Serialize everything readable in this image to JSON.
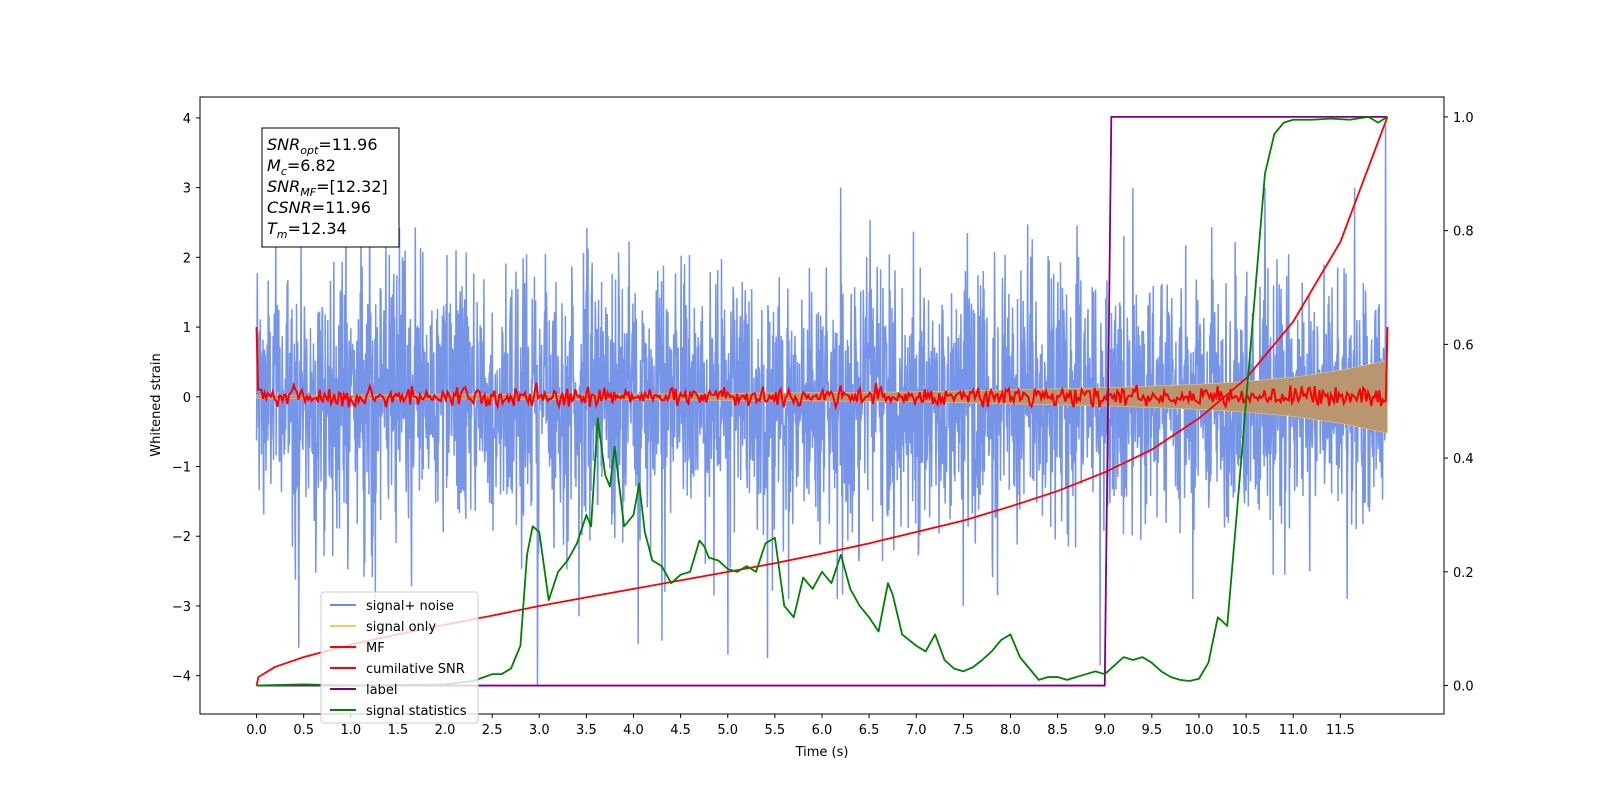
{
  "chart_data": {
    "type": "line",
    "xlabel": "Time (s)",
    "ylabel": "Whitened strain",
    "xlim": [
      -0.6,
      12.6
    ],
    "ylim": [
      -4.55,
      4.3
    ],
    "ylim_right": [
      -0.05,
      1.035
    ],
    "xticks": [
      0.0,
      0.5,
      1.0,
      1.5,
      2.0,
      2.5,
      3.0,
      3.5,
      4.0,
      4.5,
      5.0,
      5.5,
      6.0,
      6.5,
      7.0,
      7.5,
      8.0,
      8.5,
      9.0,
      9.5,
      10.0,
      10.5,
      11.0,
      11.5
    ],
    "xtick_labels": [
      "0.0",
      "0.5",
      "1.0",
      "1.5",
      "2.0",
      "2.5",
      "3.0",
      "3.5",
      "4.0",
      "4.5",
      "5.0",
      "5.5",
      "6.0",
      "6.5",
      "7.0",
      "7.5",
      "8.0",
      "8.5",
      "9.0",
      "9.5",
      "10.0",
      "10.5",
      "11.0",
      "11.5"
    ],
    "yticks": [
      4,
      3,
      2,
      1,
      0,
      -1,
      -2,
      -3,
      -4
    ],
    "ytick_labels": [
      "4",
      "3",
      "2",
      "1",
      "0",
      "−1",
      "−2",
      "−3",
      "−4"
    ],
    "yticks_right": [
      1.0,
      0.8,
      0.6,
      0.4,
      0.2,
      0.0
    ],
    "ytick_labels_right": [
      "1.0",
      "0.8",
      "0.6",
      "0.4",
      "0.2",
      "0.0"
    ],
    "annotation": [
      {
        "base": "SNR",
        "sub": "opt",
        "value": "=11.96"
      },
      {
        "base": "M",
        "sub": "c",
        "value": "=6.82"
      },
      {
        "base": "SNR",
        "sub": "MF",
        "value": "=[12.32]"
      },
      {
        "base": "CSNR",
        "sub": "",
        "value": "=11.96"
      },
      {
        "base": "T",
        "sub": "m",
        "value": "=12.34"
      }
    ],
    "legend_position": "lower-left",
    "grid": false,
    "series": [
      {
        "name": "signal+ noise",
        "color": "#6a8ce6",
        "axis": "left",
        "kind": "noise",
        "t_start": 0.0,
        "t_end": 12.0,
        "samples": 3000,
        "std": 0.95,
        "spikes": [
          {
            "x": 0.45,
            "y": -3.6
          },
          {
            "x": 0.95,
            "y": 3.0
          },
          {
            "x": 2.98,
            "y": -4.15
          },
          {
            "x": 3.42,
            "y": -3.15
          },
          {
            "x": 4.05,
            "y": 3.12
          },
          {
            "x": 4.05,
            "y": -3.55
          },
          {
            "x": 4.3,
            "y": -3.5
          },
          {
            "x": 5.0,
            "y": -3.7
          },
          {
            "x": 5.42,
            "y": -3.75
          },
          {
            "x": 6.2,
            "y": 3.0
          },
          {
            "x": 7.5,
            "y": -3.0
          },
          {
            "x": 8.95,
            "y": -3.85
          },
          {
            "x": 9.3,
            "y": 3.0
          },
          {
            "x": 11.65,
            "y": 3.0
          },
          {
            "x": 11.98,
            "y": 3.9
          },
          {
            "x": 1.2,
            "y": 3.0
          },
          {
            "x": 10.7,
            "y": 3.0
          }
        ]
      },
      {
        "name": "signal only",
        "color": "#f5c86a",
        "axis": "left",
        "kind": "envelope",
        "envelope": [
          [
            0.0,
            0.02
          ],
          [
            2.0,
            0.03
          ],
          [
            4.0,
            0.04
          ],
          [
            6.0,
            0.06
          ],
          [
            7.0,
            0.07
          ],
          [
            8.0,
            0.1
          ],
          [
            9.0,
            0.13
          ],
          [
            10.0,
            0.18
          ],
          [
            10.5,
            0.22
          ],
          [
            11.0,
            0.28
          ],
          [
            11.5,
            0.38
          ],
          [
            12.0,
            0.52
          ]
        ]
      },
      {
        "name": "MF",
        "color": "#ff0000",
        "axis": "left",
        "kind": "mf",
        "t_start": 0.0,
        "t_end": 12.0,
        "samples": 700,
        "amplitude": 0.07,
        "endpoints": [
          [
            0.0,
            1.0
          ],
          [
            0.03,
            0.05
          ],
          [
            11.97,
            0.05
          ],
          [
            12.0,
            1.0
          ]
        ]
      },
      {
        "name": "cumilative SNR",
        "color": "#ff0000",
        "axis": "right",
        "x": [
          0.0,
          0.02,
          0.2,
          0.5,
          1.0,
          1.5,
          2.0,
          2.5,
          3.0,
          3.5,
          4.0,
          4.5,
          5.0,
          5.5,
          6.0,
          6.5,
          7.0,
          7.5,
          8.0,
          8.5,
          9.0,
          9.5,
          10.0,
          10.5,
          11.0,
          11.5,
          12.0
        ],
        "y": [
          0.0,
          0.015,
          0.033,
          0.05,
          0.072,
          0.09,
          0.107,
          0.123,
          0.14,
          0.155,
          0.17,
          0.185,
          0.2,
          0.215,
          0.232,
          0.25,
          0.27,
          0.29,
          0.315,
          0.342,
          0.375,
          0.415,
          0.47,
          0.54,
          0.64,
          0.78,
          1.0
        ]
      },
      {
        "name": "label",
        "color": "#800080",
        "axis": "right",
        "x": [
          0.0,
          9.0,
          9.07,
          12.0
        ],
        "y": [
          0.0,
          0.0,
          1.0,
          1.0
        ]
      },
      {
        "name": "signal statistics",
        "color": "#008000",
        "axis": "right",
        "x": [
          0.0,
          0.5,
          1.0,
          1.5,
          2.0,
          2.3,
          2.5,
          2.6,
          2.7,
          2.8,
          2.87,
          2.93,
          3.0,
          3.1,
          3.2,
          3.3,
          3.4,
          3.5,
          3.55,
          3.62,
          3.7,
          3.75,
          3.8,
          3.85,
          3.9,
          4.0,
          4.06,
          4.12,
          4.2,
          4.3,
          4.4,
          4.5,
          4.6,
          4.7,
          4.75,
          4.8,
          4.9,
          5.0,
          5.1,
          5.2,
          5.3,
          5.4,
          5.5,
          5.6,
          5.7,
          5.8,
          5.9,
          6.0,
          6.1,
          6.2,
          6.3,
          6.4,
          6.5,
          6.6,
          6.7,
          6.75,
          6.85,
          7.0,
          7.1,
          7.2,
          7.3,
          7.4,
          7.5,
          7.6,
          7.7,
          7.8,
          7.9,
          8.0,
          8.1,
          8.2,
          8.3,
          8.4,
          8.5,
          8.6,
          8.7,
          8.8,
          8.9,
          9.0,
          9.1,
          9.2,
          9.3,
          9.4,
          9.5,
          9.6,
          9.7,
          9.8,
          9.9,
          10.0,
          10.1,
          10.2,
          10.3,
          10.4,
          10.5,
          10.55,
          10.6,
          10.7,
          10.8,
          10.9,
          11.0,
          11.2,
          11.4,
          11.6,
          11.8,
          11.9,
          12.0
        ],
        "y": [
          0.0,
          0.002,
          0.0,
          0.001,
          0.002,
          0.008,
          0.02,
          0.02,
          0.03,
          0.07,
          0.23,
          0.28,
          0.27,
          0.15,
          0.2,
          0.22,
          0.25,
          0.3,
          0.28,
          0.47,
          0.37,
          0.35,
          0.42,
          0.35,
          0.28,
          0.3,
          0.355,
          0.27,
          0.22,
          0.21,
          0.18,
          0.195,
          0.2,
          0.255,
          0.245,
          0.225,
          0.22,
          0.205,
          0.2,
          0.21,
          0.2,
          0.25,
          0.26,
          0.14,
          0.12,
          0.19,
          0.17,
          0.2,
          0.18,
          0.23,
          0.17,
          0.14,
          0.12,
          0.095,
          0.18,
          0.16,
          0.09,
          0.07,
          0.06,
          0.09,
          0.045,
          0.03,
          0.025,
          0.032,
          0.045,
          0.06,
          0.08,
          0.09,
          0.05,
          0.03,
          0.01,
          0.015,
          0.015,
          0.01,
          0.015,
          0.02,
          0.025,
          0.02,
          0.035,
          0.05,
          0.045,
          0.05,
          0.04,
          0.025,
          0.015,
          0.01,
          0.008,
          0.012,
          0.04,
          0.12,
          0.105,
          0.3,
          0.5,
          0.6,
          0.7,
          0.9,
          0.97,
          0.99,
          0.995,
          0.995,
          0.997,
          0.995,
          1.0,
          0.99,
          1.0
        ]
      }
    ]
  }
}
